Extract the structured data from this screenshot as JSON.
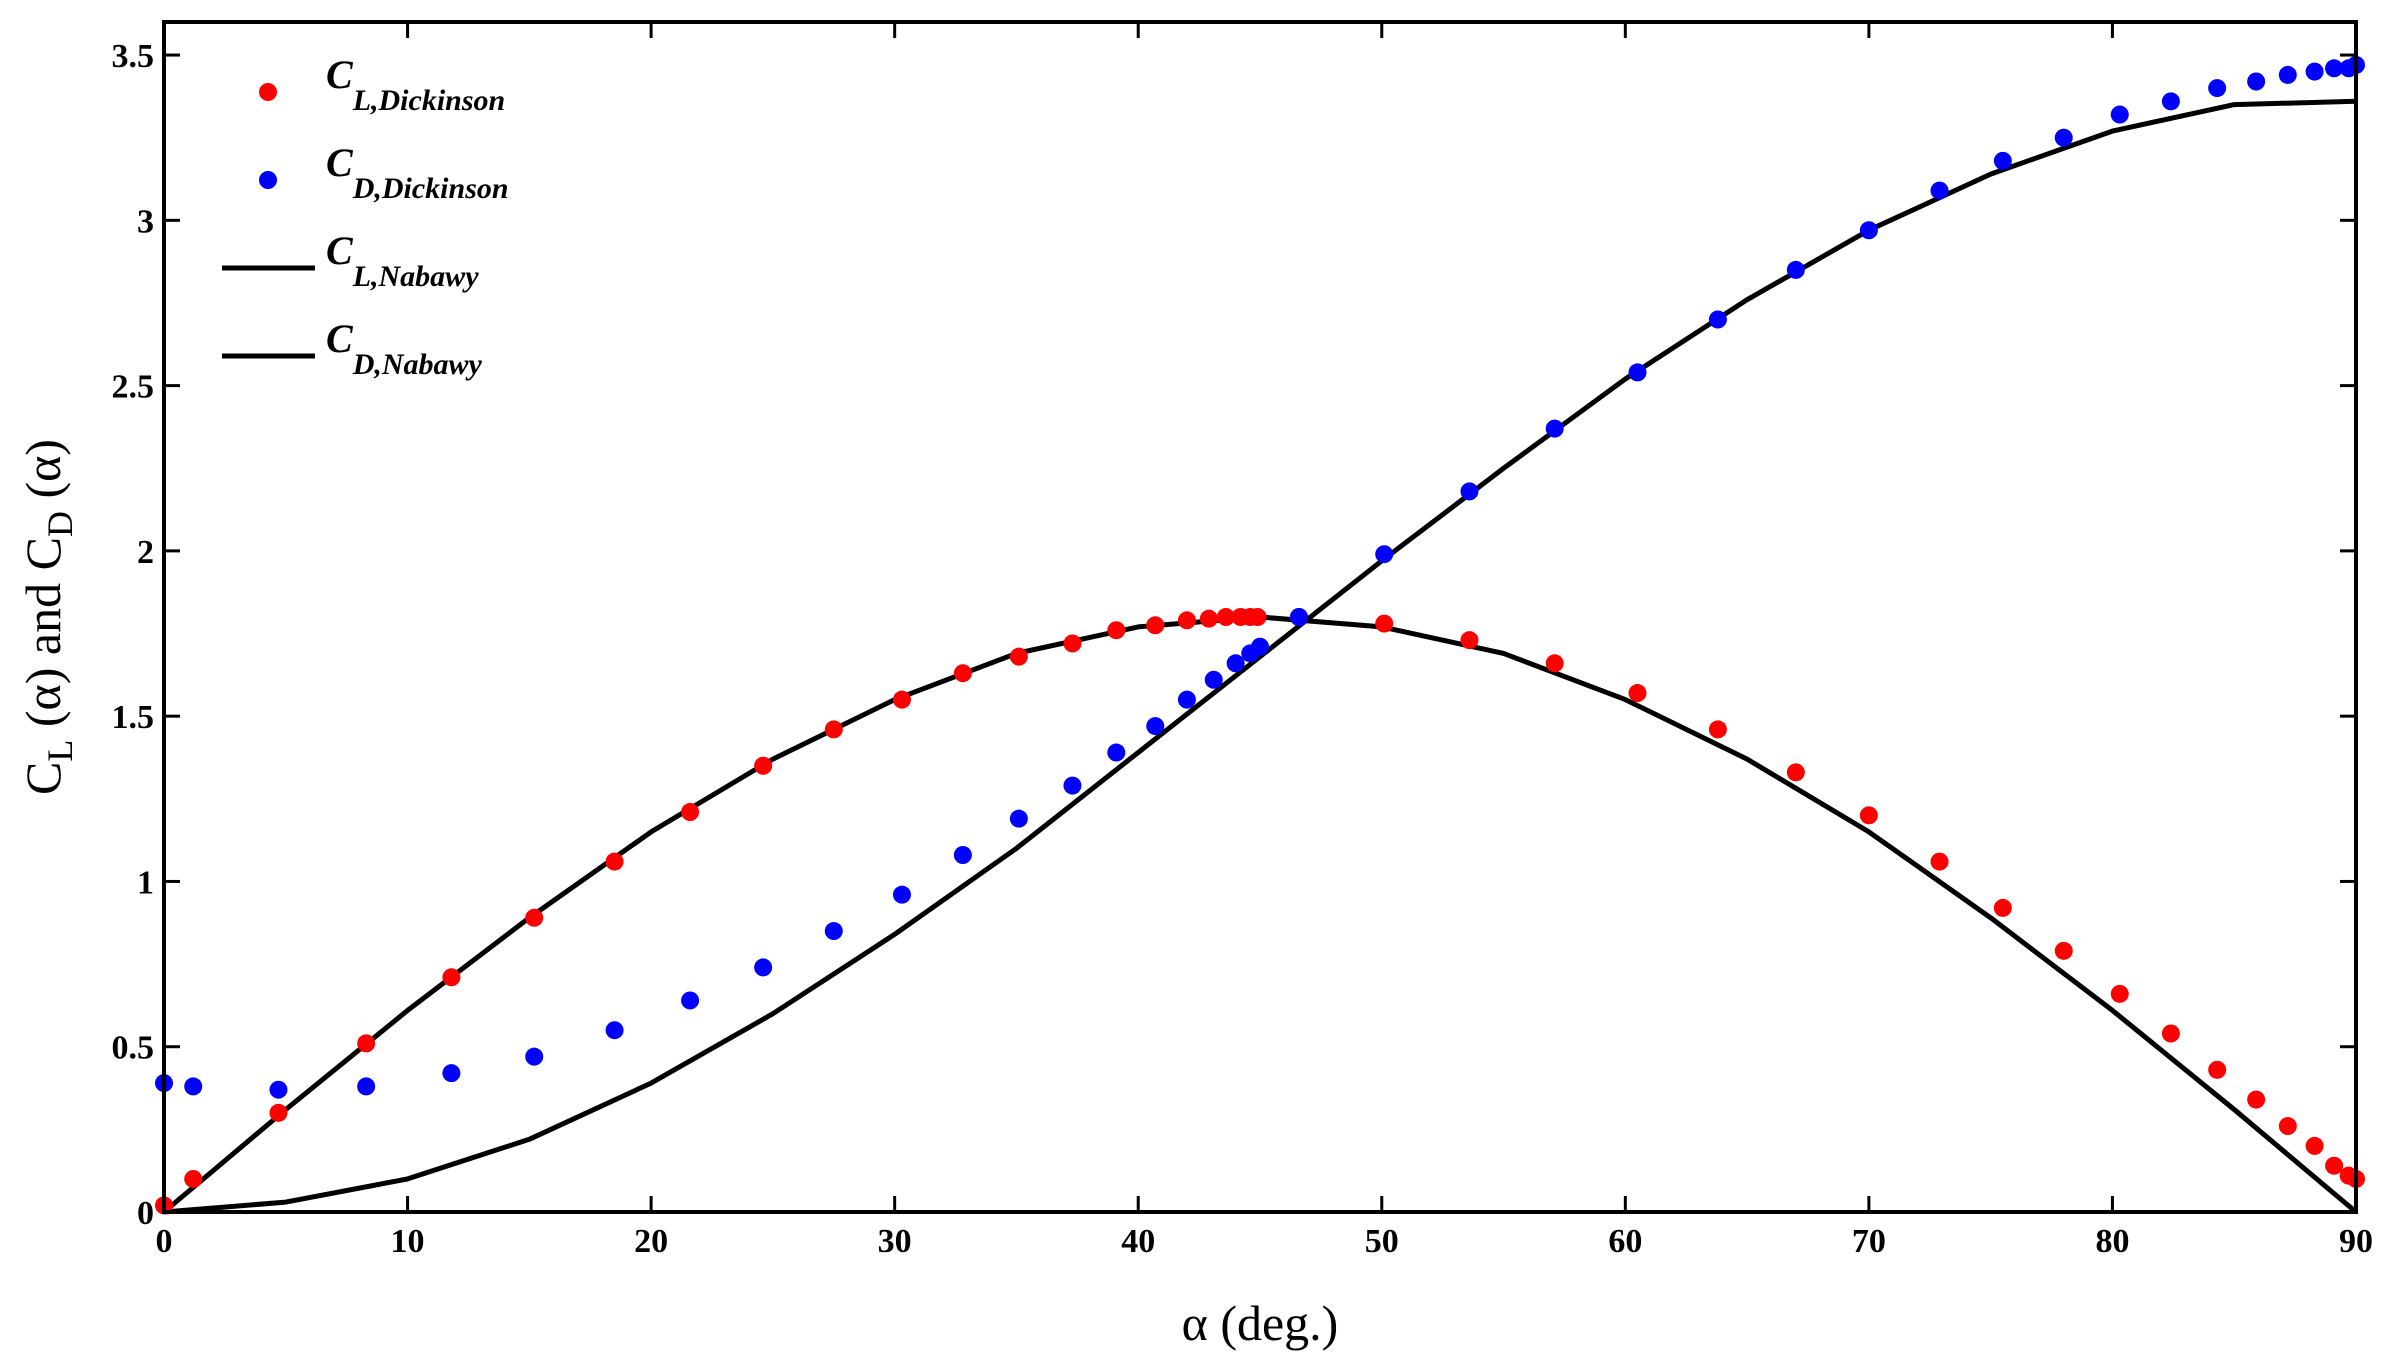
{
  "chart_data": {
    "type": "scatter",
    "xlabel": "α (deg.)",
    "ylabel": {
      "base1": "C",
      "sub1": "L",
      "mid": " (α) and ",
      "base2": "C",
      "sub2": "D",
      "end": " (α)"
    },
    "xlim": [
      0,
      90
    ],
    "ylim": [
      0,
      3.6
    ],
    "xticks": [
      0,
      10,
      20,
      30,
      40,
      50,
      60,
      70,
      80,
      90
    ],
    "yticks": [
      0,
      0.5,
      1,
      1.5,
      2,
      2.5,
      3,
      3.5
    ],
    "ytick_labels": [
      "0",
      "0.5",
      "1",
      "1.5",
      "2",
      "2.5",
      "3",
      "3.5"
    ],
    "grid": false,
    "legend_position": "top-left",
    "series": [
      {
        "name": "C_L,Dickinson",
        "legend_base": "C",
        "legend_sub": "L,Dickinson",
        "kind": "markers",
        "color": "#ff0000",
        "x": [
          0,
          1.2,
          4.7,
          8.3,
          11.8,
          15.2,
          18.5,
          21.6,
          24.6,
          27.5,
          30.3,
          32.8,
          35.1,
          37.3,
          39.1,
          40.7,
          42.0,
          42.9,
          43.6,
          44.2,
          44.6,
          44.9,
          46.6,
          50.1,
          53.6,
          57.1,
          60.5,
          63.8,
          67.0,
          70.0,
          72.9,
          75.5,
          78.0,
          80.3,
          82.4,
          84.3,
          85.9,
          87.2,
          88.3,
          89.1,
          89.7,
          90.0
        ],
        "y": [
          0.02,
          0.1,
          0.3,
          0.51,
          0.71,
          0.89,
          1.06,
          1.21,
          1.35,
          1.46,
          1.55,
          1.63,
          1.68,
          1.72,
          1.76,
          1.775,
          1.79,
          1.795,
          1.8,
          1.8,
          1.8,
          1.8,
          1.8,
          1.78,
          1.73,
          1.66,
          1.57,
          1.46,
          1.33,
          1.2,
          1.06,
          0.92,
          0.79,
          0.66,
          0.54,
          0.43,
          0.34,
          0.26,
          0.2,
          0.14,
          0.11,
          0.1
        ]
      },
      {
        "name": "C_D,Dickinson",
        "legend_base": "C",
        "legend_sub": "D,Dickinson",
        "kind": "markers",
        "color": "#0000ff",
        "x": [
          0,
          1.2,
          4.7,
          8.3,
          11.8,
          15.2,
          18.5,
          21.6,
          24.6,
          27.5,
          30.3,
          32.8,
          35.1,
          37.3,
          39.1,
          40.7,
          42.0,
          43.1,
          44.0,
          44.6,
          45.0,
          46.6,
          50.1,
          53.6,
          57.1,
          60.5,
          63.8,
          67.0,
          70.0,
          72.9,
          75.5,
          78.0,
          80.3,
          82.4,
          84.3,
          85.9,
          87.2,
          88.3,
          89.1,
          89.7,
          90.0
        ],
        "y": [
          0.39,
          0.38,
          0.37,
          0.38,
          0.42,
          0.47,
          0.55,
          0.64,
          0.74,
          0.85,
          0.96,
          1.08,
          1.19,
          1.29,
          1.39,
          1.47,
          1.55,
          1.61,
          1.66,
          1.69,
          1.71,
          1.8,
          1.99,
          2.18,
          2.37,
          2.54,
          2.7,
          2.85,
          2.97,
          3.09,
          3.18,
          3.25,
          3.32,
          3.36,
          3.4,
          3.42,
          3.44,
          3.45,
          3.46,
          3.46,
          3.47
        ]
      },
      {
        "name": "C_L,Nabawy",
        "legend_base": "C",
        "legend_sub": "L,Nabawy",
        "kind": "line",
        "color": "#000000",
        "x": [
          0,
          5,
          10,
          15,
          20,
          25,
          30,
          35,
          40,
          45,
          50,
          55,
          60,
          65,
          70,
          75,
          80,
          85,
          90
        ],
        "y": [
          0.0,
          0.31,
          0.61,
          0.89,
          1.15,
          1.37,
          1.55,
          1.69,
          1.77,
          1.8,
          1.77,
          1.69,
          1.55,
          1.37,
          1.15,
          0.89,
          0.61,
          0.31,
          0.0
        ]
      },
      {
        "name": "C_D,Nabawy",
        "legend_base": "C",
        "legend_sub": "D,Nabawy",
        "kind": "line",
        "color": "#000000",
        "x": [
          0,
          5,
          10,
          15,
          20,
          25,
          30,
          35,
          40,
          45,
          50,
          55,
          60,
          65,
          70,
          75,
          80,
          85,
          90
        ],
        "y": [
          0.0,
          0.03,
          0.1,
          0.22,
          0.39,
          0.6,
          0.84,
          1.1,
          1.39,
          1.68,
          1.97,
          2.25,
          2.52,
          2.76,
          2.97,
          3.14,
          3.27,
          3.35,
          3.36
        ]
      }
    ]
  }
}
